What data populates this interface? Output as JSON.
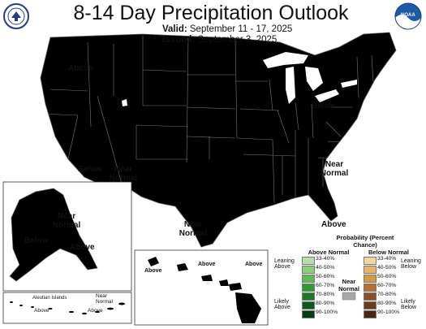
{
  "header": {
    "title": "8-14 Day Precipitation Outlook",
    "valid_label": "Valid:",
    "valid_value": "September 11 - 17, 2025",
    "issued_label": "Issued:",
    "issued_value": "September 3, 2025",
    "left_logo_icon": "noaa-doc-seal-icon",
    "right_logo_icon": "noaa-logo-icon",
    "right_logo_text": "NOAA"
  },
  "map_labels": {
    "above_west": "Above",
    "below_southwest": "Below",
    "near_normal_southwest": "Near Normal",
    "near_normal_south_texas": "Near Normal",
    "below_great_lakes": "Below",
    "near_normal_southeast": "Near Normal",
    "above_florida": "Above",
    "alaska_near_normal": "Near Normal",
    "alaska_below": "Below",
    "alaska_above": "Above",
    "hawaii_above_1": "Above",
    "hawaii_above_2": "Above",
    "hawaii_above_3": "Above",
    "aleutian_title": "Aleutian Islands",
    "aleutian_near_normal": "Near Normal",
    "aleutian_above_1": "Above",
    "aleutian_above_2": "Above"
  },
  "legend": {
    "title": "Probability (Percent Chance)",
    "above_header": "Above Normal",
    "below_header": "Below Normal",
    "near_header": "Near Normal",
    "leaning_above": "Leaning Above",
    "likely_above": "Likely Above",
    "leaning_below": "Leaning Below",
    "likely_below": "Likely Below",
    "bins": [
      "33-40%",
      "40-50%",
      "50-60%",
      "60-70%",
      "70-80%",
      "80-90%",
      "90-100%"
    ],
    "above_colors": [
      "#b3e0a6",
      "#8bcf7c",
      "#5fbb52",
      "#2e9b2f",
      "#1a7a26",
      "#0e5a1a",
      "#063d10"
    ],
    "below_colors": [
      "#f5d59e",
      "#e8b465",
      "#d99a3c",
      "#b86e2c",
      "#8f4f22",
      "#6e3a1a",
      "#4a2612"
    ],
    "near_color": "#a8a8a8",
    "category_colors": {
      "above_33_40": "#b3e0a6",
      "above_40_50": "#8bcf7c",
      "below_33_40": "#f5d59e",
      "below_40_50": "#e8b465",
      "near_normal": "#a8a8a8"
    }
  }
}
